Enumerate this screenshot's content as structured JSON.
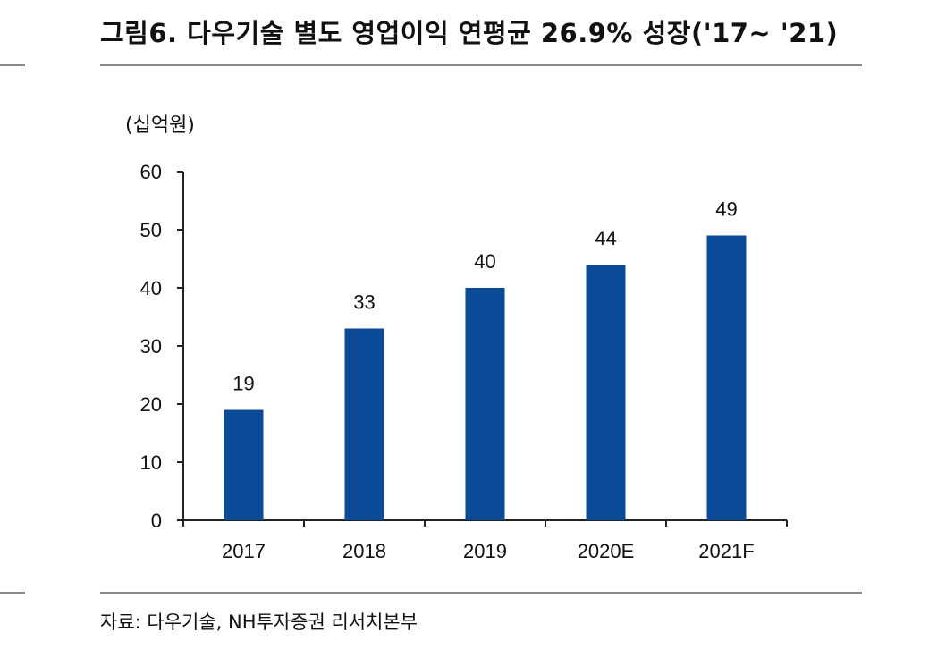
{
  "header": {
    "title": "그림6. 다우기술 별도 영업이익 연평균 26.9% 성장('17~ '21)"
  },
  "footer": {
    "source": "자료: 다우기술, NH투자증권 리서치본부"
  },
  "colors": {
    "bar": "#0a4a96",
    "axis": "#222222",
    "rule": "#8a8a8a"
  },
  "chart_data": {
    "type": "bar",
    "title": "그림6. 다우기술 별도 영업이익 연평균 26.9% 성장('17~ '21)",
    "ylabel": "(십억원)",
    "xlabel": "",
    "categories": [
      "2017",
      "2018",
      "2019",
      "2020E",
      "2021F"
    ],
    "values": [
      19,
      33,
      40,
      44,
      49
    ],
    "data_labels": [
      "19",
      "33",
      "40",
      "44",
      "49"
    ],
    "ylim": [
      0,
      60
    ],
    "yticks": [
      0,
      10,
      20,
      30,
      40,
      50,
      60
    ],
    "grid": false,
    "legend": "none"
  }
}
